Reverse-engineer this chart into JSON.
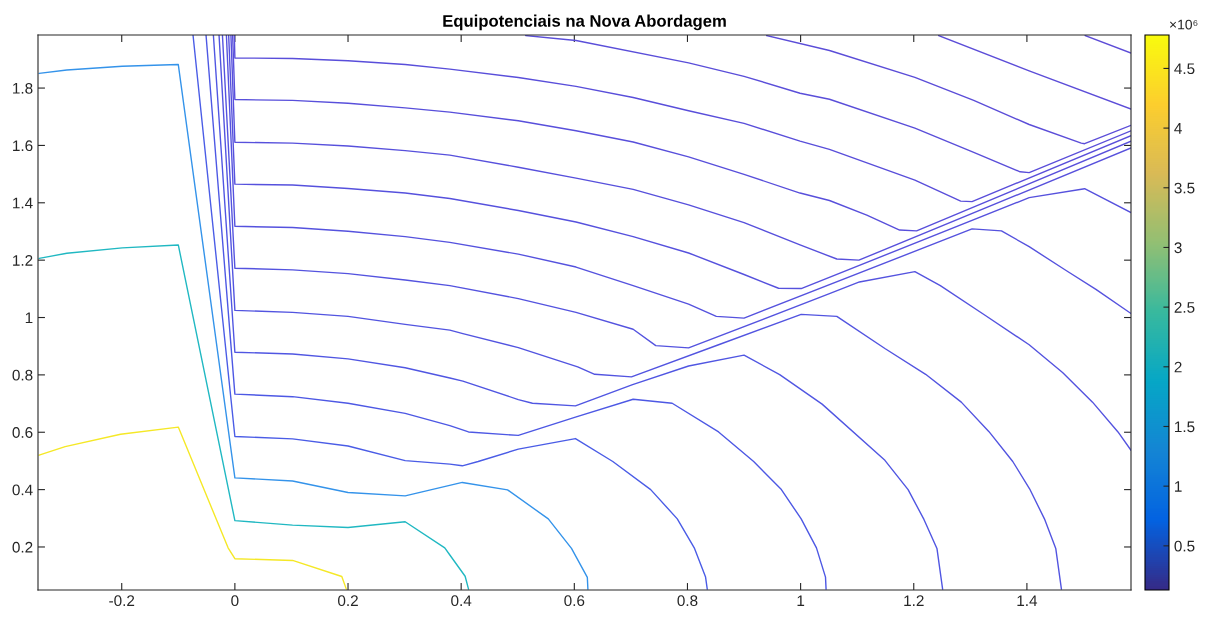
{
  "chart_data": {
    "type": "line",
    "title": "Equipotenciais na Nova Abordagem",
    "clabel": "×10⁶",
    "xlim": [
      -0.348,
      1.584
    ],
    "ylim": [
      0.05,
      1.985
    ],
    "xticks": [
      -0.2,
      0,
      0.2,
      0.4,
      0.6,
      0.8,
      1,
      1.2,
      1.4
    ],
    "yticks": [
      0.2,
      0.4,
      0.6,
      0.8,
      1,
      1.2,
      1.4,
      1.6,
      1.8
    ],
    "clim": [
      0.13,
      4.78
    ],
    "cticks": [
      0.5,
      1,
      1.5,
      2,
      2.5,
      3,
      3.5,
      4,
      4.5
    ],
    "series": [
      {
        "color": "#f5e826",
        "x": [
          -0.346,
          -0.3,
          -0.202,
          -0.1,
          -0.012,
          0,
          0.102,
          0.189,
          0.197
        ],
        "values": [
          0.52,
          0.55,
          0.593,
          0.618,
          0.197,
          0.159,
          0.153,
          0.097,
          0.053
        ]
      },
      {
        "color": "#20b8c2",
        "x": [
          -0.346,
          -0.297,
          -0.199,
          -0.1,
          0,
          0.102,
          0.2,
          0.301,
          0.371,
          0.38,
          0.407,
          0.413
        ],
        "values": [
          1.206,
          1.224,
          1.243,
          1.253,
          0.292,
          0.276,
          0.268,
          0.288,
          0.197,
          0.172,
          0.098,
          0.053
        ]
      },
      {
        "color": "#3493ea",
        "x": [
          -0.346,
          -0.297,
          -0.199,
          -0.1,
          0,
          0.102,
          0.2,
          0.301,
          0.402,
          0.482,
          0.554,
          0.595,
          0.623,
          0.624
        ],
        "values": [
          1.851,
          1.863,
          1.876,
          1.882,
          0.441,
          0.43,
          0.39,
          0.378,
          0.425,
          0.399,
          0.298,
          0.195,
          0.094,
          0.053
        ]
      },
      {
        "color": "#4a5ce6",
        "x": [
          -0.074,
          0,
          0.102,
          0.2,
          0.301,
          0.38,
          0.402,
          0.43,
          0.501,
          0.602,
          0.668,
          0.735,
          0.782,
          0.812,
          0.832,
          0.835
        ],
        "values": [
          1.985,
          0.585,
          0.577,
          0.552,
          0.501,
          0.489,
          0.483,
          0.498,
          0.541,
          0.578,
          0.498,
          0.4,
          0.298,
          0.197,
          0.095,
          0.053
        ]
      },
      {
        "color": "#4d58e4",
        "x": [
          -0.051,
          0,
          0.102,
          0.2,
          0.301,
          0.38,
          0.413,
          0.501,
          0.602,
          0.704,
          0.773,
          0.855,
          0.917,
          0.966,
          1.001,
          1.028,
          1.044,
          1.045
        ],
        "values": [
          1.985,
          0.733,
          0.724,
          0.701,
          0.666,
          0.623,
          0.601,
          0.589,
          0.653,
          0.715,
          0.701,
          0.601,
          0.498,
          0.4,
          0.298,
          0.197,
          0.095,
          0.053
        ]
      },
      {
        "color": "#5056e2",
        "x": [
          -0.038,
          0,
          0.102,
          0.2,
          0.301,
          0.38,
          0.403,
          0.501,
          0.526,
          0.602,
          0.703,
          0.802,
          0.9,
          0.963,
          1.038,
          1.149,
          1.19,
          1.218,
          1.241,
          1.251
        ],
        "values": [
          1.985,
          0.879,
          0.873,
          0.856,
          0.825,
          0.789,
          0.778,
          0.714,
          0.701,
          0.692,
          0.766,
          0.831,
          0.869,
          0.801,
          0.698,
          0.502,
          0.4,
          0.296,
          0.195,
          0.053
        ]
      },
      {
        "color": "#5254e0",
        "x": [
          -0.028,
          0,
          0.102,
          0.2,
          0.301,
          0.38,
          0.403,
          0.501,
          0.606,
          0.636,
          0.701,
          0.855,
          1.001,
          1.064,
          1.149,
          1.221,
          1.284,
          1.333,
          1.375,
          1.405,
          1.431,
          1.451,
          1.461
        ],
        "values": [
          1.985,
          1.025,
          1.018,
          1.004,
          0.976,
          0.956,
          0.944,
          0.895,
          0.828,
          0.802,
          0.793,
          0.905,
          1.011,
          1.004,
          0.892,
          0.802,
          0.705,
          0.602,
          0.498,
          0.402,
          0.298,
          0.195,
          0.053
        ]
      },
      {
        "color": "#5453df",
        "x": [
          -0.022,
          0,
          0.102,
          0.2,
          0.301,
          0.38,
          0.501,
          0.603,
          0.704,
          0.744,
          0.802,
          1.051,
          1.104,
          1.202,
          1.247,
          1.326,
          1.404,
          1.463,
          1.516,
          1.561,
          1.584
        ],
        "values": [
          1.985,
          1.172,
          1.166,
          1.153,
          1.131,
          1.111,
          1.066,
          1.018,
          0.959,
          0.902,
          0.894,
          1.083,
          1.124,
          1.16,
          1.111,
          1.008,
          0.905,
          0.808,
          0.705,
          0.601,
          0.537
        ]
      },
      {
        "color": "#5552de",
        "x": [
          -0.015,
          0,
          0.102,
          0.2,
          0.301,
          0.38,
          0.501,
          0.603,
          0.704,
          0.802,
          0.851,
          0.9,
          1.303,
          1.355,
          1.404,
          1.47,
          1.522,
          1.584
        ],
        "values": [
          1.985,
          1.318,
          1.314,
          1.301,
          1.282,
          1.262,
          1.221,
          1.176,
          1.111,
          1.047,
          1.004,
          0.998,
          1.309,
          1.302,
          1.247,
          1.163,
          1.098,
          1.014
        ]
      },
      {
        "color": "#5651dd",
        "x": [
          -0.011,
          0,
          0.102,
          0.2,
          0.301,
          0.38,
          0.501,
          0.603,
          0.704,
          0.802,
          0.9,
          0.961,
          1.001,
          1.404,
          1.502,
          1.584
        ],
        "values": [
          1.985,
          1.465,
          1.462,
          1.45,
          1.434,
          1.415,
          1.373,
          1.333,
          1.282,
          1.225,
          1.15,
          1.102,
          1.101,
          1.418,
          1.449,
          1.366
        ]
      },
      {
        "color": "#5750dc",
        "x": [
          -0.007,
          0,
          0.102,
          0.2,
          0.301,
          0.38,
          0.501,
          0.603,
          0.704,
          0.802,
          0.9,
          0.999,
          1.064,
          1.103,
          1.584
        ],
        "values": [
          1.985,
          1.611,
          1.608,
          1.598,
          1.582,
          1.566,
          1.524,
          1.486,
          1.447,
          1.393,
          1.331,
          1.253,
          1.204,
          1.2,
          1.591
        ]
      },
      {
        "color": "#584fdb",
        "x": [
          -0.004,
          0,
          0.102,
          0.2,
          0.301,
          0.38,
          0.501,
          0.603,
          0.704,
          0.802,
          0.9,
          0.999,
          1.051,
          1.117,
          1.175,
          1.205,
          1.584
        ],
        "values": [
          1.985,
          1.76,
          1.757,
          1.747,
          1.731,
          1.716,
          1.686,
          1.651,
          1.612,
          1.56,
          1.499,
          1.434,
          1.408,
          1.357,
          1.305,
          1.302,
          1.615
        ]
      },
      {
        "color": "#594eda",
        "x": [
          -0.001,
          0,
          0.102,
          0.2,
          0.301,
          0.38,
          0.501,
          0.603,
          0.704,
          0.802,
          0.9,
          0.999,
          1.051,
          1.202,
          1.283,
          1.303,
          1.584
        ],
        "values": [
          1.985,
          1.905,
          1.903,
          1.895,
          1.882,
          1.866,
          1.837,
          1.806,
          1.767,
          1.721,
          1.677,
          1.615,
          1.586,
          1.479,
          1.406,
          1.404,
          1.634
        ]
      },
      {
        "color": "#5a4ed9",
        "x": [
          0.514,
          0.603,
          0.802,
          0.9,
          0.999,
          1.051,
          1.202,
          1.306,
          1.388,
          1.404,
          1.584
        ],
        "values": [
          1.983,
          1.966,
          1.888,
          1.841,
          1.782,
          1.761,
          1.66,
          1.576,
          1.508,
          1.505,
          1.651
        ]
      },
      {
        "color": "#5b4dd8",
        "x": [
          0.94,
          1.051,
          1.202,
          1.306,
          1.404,
          1.496,
          1.502,
          1.584
        ],
        "values": [
          1.983,
          1.931,
          1.837,
          1.757,
          1.673,
          1.608,
          1.606,
          1.67
        ]
      },
      {
        "color": "#5c4dd8",
        "x": [
          1.244,
          1.404,
          1.584
        ],
        "values": [
          1.983,
          1.86,
          1.727
        ]
      },
      {
        "color": "#5d4cd7",
        "x": [
          1.503,
          1.584
        ],
        "values": [
          1.983,
          1.922
        ]
      }
    ]
  }
}
